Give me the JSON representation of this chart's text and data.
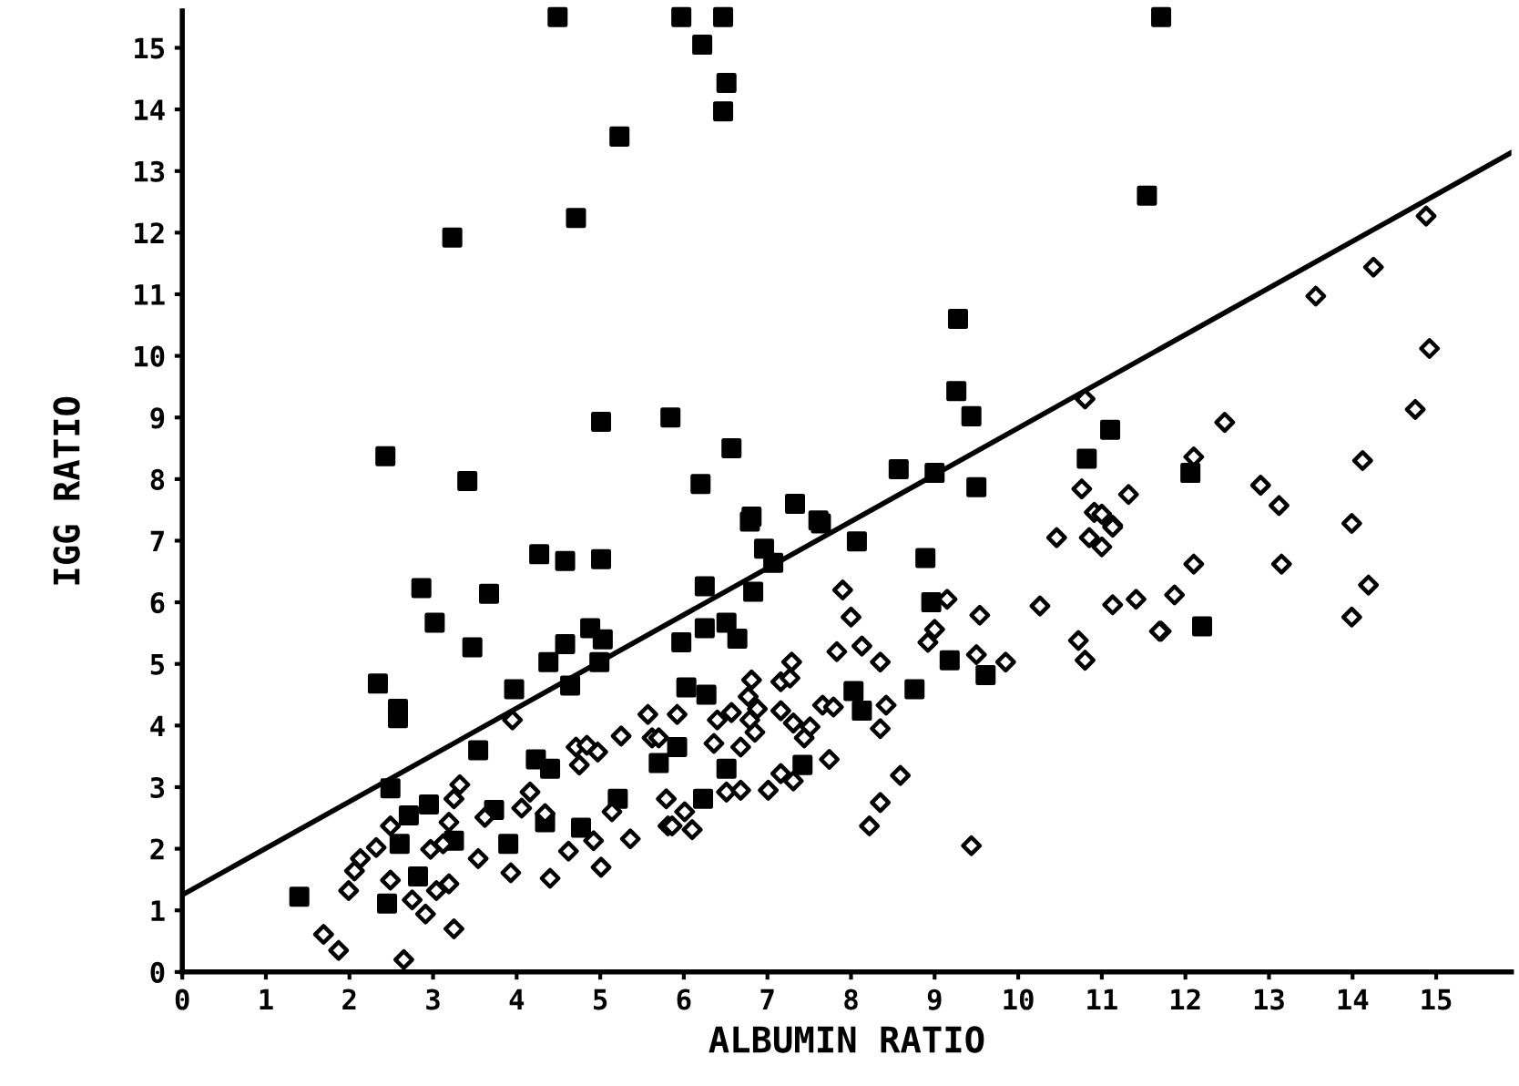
{
  "chart_data": {
    "type": "scatter",
    "xlabel": "ALBUMIN RATIO",
    "ylabel": "IGG RATIO",
    "xlim": [
      0,
      15.9
    ],
    "ylim": [
      0,
      15.6
    ],
    "xticks": [
      0,
      1,
      2,
      3,
      4,
      5,
      6,
      7,
      8,
      9,
      10,
      11,
      12,
      13,
      14,
      15
    ],
    "yticks": [
      0,
      1,
      2,
      3,
      4,
      5,
      6,
      7,
      8,
      9,
      10,
      11,
      12,
      13,
      14,
      15
    ],
    "grid": false,
    "legend": false,
    "series": [
      {
        "marker": "square",
        "color": "#000000",
        "x": [
          4.49,
          5.97,
          6.47,
          11.71,
          6.22,
          6.51,
          6.47,
          5.23,
          4.71,
          11.54,
          3.23,
          5.01,
          5.84,
          2.43,
          3.41,
          9.28,
          9.26,
          9.44,
          6.57,
          6.2,
          6.81,
          7.33,
          7.61,
          8.57,
          9.0,
          9.5,
          11.1,
          10.82,
          12.06,
          12.2,
          1.4,
          4.27,
          4.58,
          5.01,
          2.86,
          3.67,
          3.02,
          3.47,
          2.34,
          2.58,
          2.58,
          3.97,
          3.54,
          2.49,
          2.71,
          2.95,
          4.88,
          5.03,
          4.58,
          4.38,
          4.64,
          4.99,
          4.23,
          4.4,
          3.73,
          4.34,
          4.77,
          5.21,
          2.6,
          2.45,
          2.82,
          3.25,
          3.9,
          5.7,
          8.07,
          8.89,
          8.96,
          9.18,
          9.61,
          8.76,
          6.96,
          7.64,
          7.07,
          6.25,
          6.83,
          6.25,
          6.51,
          5.97,
          6.64,
          6.03,
          6.27,
          6.79,
          8.03,
          8.13,
          7.42,
          5.92,
          6.23,
          6.51
        ],
        "values": [
          15.5,
          15.5,
          15.5,
          15.5,
          15.05,
          14.43,
          13.97,
          13.56,
          12.24,
          12.6,
          11.92,
          8.93,
          9.0,
          8.37,
          7.97,
          10.6,
          9.43,
          9.02,
          8.5,
          7.92,
          7.39,
          7.6,
          7.33,
          8.16,
          8.1,
          7.87,
          8.8,
          8.33,
          8.1,
          5.61,
          1.22,
          6.78,
          6.67,
          6.7,
          6.23,
          6.14,
          5.67,
          5.27,
          4.68,
          4.27,
          4.12,
          4.59,
          3.6,
          2.98,
          2.54,
          2.72,
          5.58,
          5.4,
          5.32,
          5.03,
          4.65,
          5.03,
          3.45,
          3.3,
          2.63,
          2.43,
          2.34,
          2.81,
          2.08,
          1.11,
          1.55,
          2.13,
          2.08,
          3.39,
          6.99,
          6.72,
          6.0,
          5.06,
          4.82,
          4.59,
          6.87,
          7.28,
          6.64,
          6.26,
          6.17,
          5.58,
          5.67,
          5.35,
          5.41,
          4.62,
          4.5,
          7.31,
          4.56,
          4.24,
          3.36,
          3.65,
          2.81,
          3.3
        ]
      },
      {
        "marker": "diamond",
        "color": "#000000",
        "x": [
          10.8,
          10.76,
          11.32,
          10.91,
          11.0,
          11.13,
          12.1,
          14.88,
          14.25,
          13.56,
          14.92,
          14.75,
          14.12,
          12.47,
          12.9,
          13.12,
          13.99,
          12.1,
          13.15,
          11.87,
          14.19,
          13.99,
          11.71,
          1.69,
          1.87,
          2.65,
          3.25,
          1.99,
          2.06,
          2.13,
          2.32,
          2.49,
          2.49,
          2.91,
          2.75,
          2.97,
          3.12,
          3.19,
          3.25,
          3.32,
          3.19,
          3.04,
          3.54,
          3.95,
          3.93,
          4.4,
          5.01,
          4.62,
          4.92,
          4.16,
          4.71,
          4.84,
          4.97,
          4.75,
          5.25,
          5.57,
          5.62,
          5.36,
          4.06,
          3.62,
          4.34,
          5.14,
          5.81,
          7.9,
          8.0,
          7.83,
          8.13,
          8.35,
          9.15,
          9.54,
          9.0,
          8.92,
          9.5,
          9.85,
          10.26,
          10.46,
          10.85,
          11.0,
          11.13,
          10.72,
          10.8,
          11.13,
          11.41,
          11.69,
          7.74,
          8.59,
          8.35,
          8.22,
          9.44,
          8.42,
          8.35,
          7.66,
          7.79,
          7.51,
          7.31,
          7.44,
          7.16,
          7.29,
          7.27,
          6.81,
          6.77,
          6.88,
          6.57,
          6.4,
          7.16,
          7.01,
          7.16,
          7.31,
          6.51,
          6.68,
          5.92,
          6.36,
          5.86,
          6.1,
          6.01,
          5.79,
          5.7,
          6.68,
          6.85,
          6.79
        ],
        "values": [
          9.3,
          7.84,
          7.75,
          7.46,
          7.43,
          7.25,
          8.36,
          12.27,
          11.44,
          10.97,
          10.12,
          9.13,
          8.3,
          8.92,
          7.9,
          7.57,
          7.28,
          6.62,
          6.62,
          6.12,
          6.28,
          5.76,
          5.53,
          0.61,
          0.35,
          0.2,
          0.7,
          1.32,
          1.64,
          1.84,
          2.02,
          2.37,
          1.49,
          0.94,
          1.17,
          1.99,
          2.08,
          2.43,
          2.81,
          3.04,
          1.43,
          1.32,
          1.84,
          4.09,
          1.61,
          1.52,
          1.7,
          1.96,
          2.13,
          2.92,
          3.65,
          3.68,
          3.57,
          3.36,
          3.83,
          4.18,
          3.8,
          2.16,
          2.66,
          2.51,
          2.57,
          2.6,
          2.37,
          6.2,
          5.76,
          5.2,
          5.29,
          5.03,
          6.05,
          5.79,
          5.56,
          5.35,
          5.15,
          5.03,
          5.94,
          7.05,
          7.05,
          6.9,
          7.22,
          5.38,
          5.06,
          5.96,
          6.05,
          5.53,
          3.45,
          3.19,
          2.75,
          2.37,
          2.05,
          4.33,
          3.95,
          4.33,
          4.3,
          3.98,
          4.04,
          3.8,
          4.71,
          5.03,
          4.77,
          4.74,
          4.47,
          4.27,
          4.21,
          4.09,
          4.24,
          2.95,
          3.22,
          3.1,
          2.92,
          2.95,
          4.18,
          3.71,
          2.37,
          2.31,
          2.6,
          2.81,
          3.8,
          3.65,
          3.89,
          4.09
        ]
      },
      {
        "type": "line",
        "line_style": "solid",
        "color": "#000000",
        "x": [
          0,
          15.9
        ],
        "values": [
          1.25,
          13.3
        ]
      }
    ]
  }
}
